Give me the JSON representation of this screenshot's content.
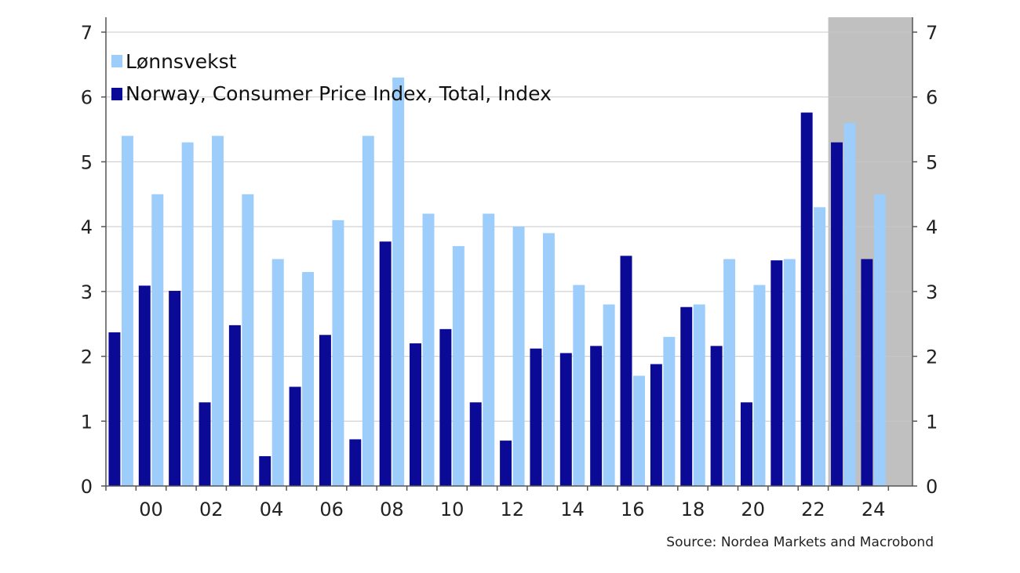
{
  "chart_data": {
    "type": "bar",
    "categories": [
      "1999",
      "2000",
      "2001",
      "2002",
      "2003",
      "2004",
      "2005",
      "2006",
      "2007",
      "2008",
      "2009",
      "2010",
      "2011",
      "2012",
      "2013",
      "2014",
      "2015",
      "2016",
      "2017",
      "2018",
      "2019",
      "2020",
      "2021",
      "2022",
      "2023",
      "2024",
      "2025"
    ],
    "series": [
      {
        "name": "Norway, Consumer Price Index, Total, Index",
        "color": "#0a0a96",
        "values": [
          2.37,
          3.09,
          3.01,
          1.29,
          2.48,
          0.46,
          1.53,
          2.33,
          0.72,
          3.77,
          2.2,
          2.42,
          1.29,
          0.7,
          2.12,
          2.05,
          2.16,
          3.55,
          1.88,
          2.76,
          2.16,
          1.29,
          3.48,
          5.76,
          5.3,
          3.5,
          null
        ]
      },
      {
        "name": "Lønnsvekst",
        "color": "#9dcdfa",
        "values": [
          5.4,
          4.5,
          5.3,
          5.4,
          4.5,
          3.5,
          3.3,
          4.1,
          5.4,
          6.3,
          4.2,
          3.7,
          4.2,
          4.0,
          3.9,
          3.1,
          2.8,
          1.7,
          2.3,
          2.8,
          3.5,
          3.1,
          3.5,
          4.3,
          5.6,
          4.5,
          null
        ]
      }
    ],
    "x_tick_labels": [
      "00",
      "02",
      "04",
      "06",
      "08",
      "10",
      "12",
      "14",
      "16",
      "18",
      "20",
      "22",
      "24"
    ],
    "ylim": [
      0,
      7
    ],
    "y_ticks": [
      "0",
      "1",
      "2",
      "3",
      "4",
      "5",
      "6",
      "7"
    ],
    "legend": {
      "placement": "top-left"
    },
    "forecast_shading": {
      "from": "2023",
      "color": "#c0c0c0"
    },
    "gridlines": true,
    "source": "Source: Nordea Markets and Macrobond"
  }
}
